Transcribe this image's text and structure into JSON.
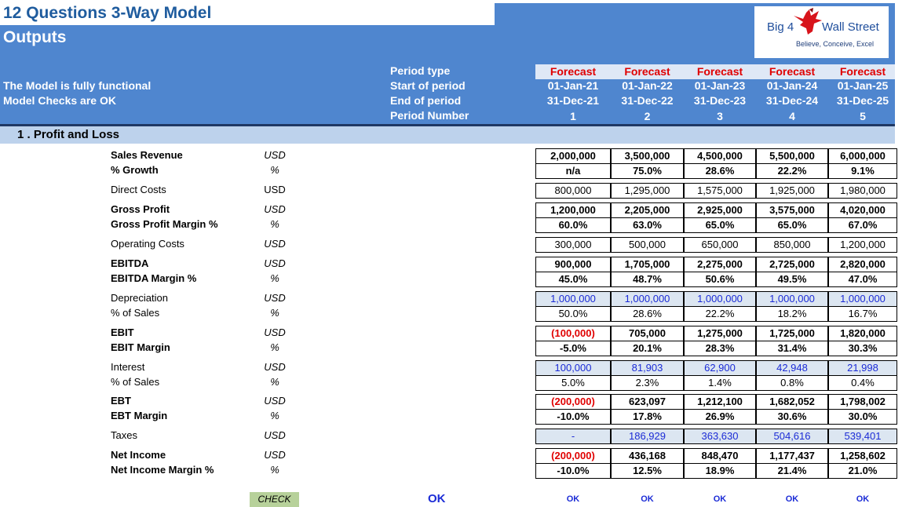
{
  "sheet": {
    "title": "12 Questions 3-Way Model",
    "subtitle": "Outputs",
    "status_functional": "The Model is fully functional",
    "status_checks": "Model Checks are OK"
  },
  "logo": {
    "text_left": "Big 4",
    "text_right": "Wall Street",
    "tagline": "Believe, Conceive, Excel",
    "icon": "eagle-logo-icon"
  },
  "periods": {
    "labels": {
      "type": "Period type",
      "start": "Start of period",
      "end": "End of period",
      "number": "Period Number"
    },
    "columns": [
      {
        "type": "Forecast",
        "start": "01-Jan-21",
        "end": "31-Dec-21",
        "number": "1"
      },
      {
        "type": "Forecast",
        "start": "01-Jan-22",
        "end": "31-Dec-22",
        "number": "2"
      },
      {
        "type": "Forecast",
        "start": "01-Jan-23",
        "end": "31-Dec-23",
        "number": "3"
      },
      {
        "type": "Forecast",
        "start": "01-Jan-24",
        "end": "31-Dec-24",
        "number": "4"
      },
      {
        "type": "Forecast",
        "start": "01-Jan-25",
        "end": "31-Dec-25",
        "number": "5"
      }
    ]
  },
  "section": {
    "title": "1 . Profit and Loss"
  },
  "rows": [
    {
      "label": "Sales Revenue",
      "unit": "USD",
      "values": [
        "2,000,000",
        "3,500,000",
        "4,500,000",
        "5,500,000",
        "6,000,000"
      ]
    },
    {
      "label": "% Growth",
      "unit": "%",
      "values": [
        "n/a",
        "75.0%",
        "28.6%",
        "22.2%",
        "9.1%"
      ]
    },
    {
      "label": "Direct Costs",
      "unit": "USD",
      "values": [
        "800,000",
        "1,295,000",
        "1,575,000",
        "1,925,000",
        "1,980,000"
      ]
    },
    {
      "label": "Gross Profit",
      "unit": "USD",
      "values": [
        "1,200,000",
        "2,205,000",
        "2,925,000",
        "3,575,000",
        "4,020,000"
      ]
    },
    {
      "label": "Gross Profit Margin %",
      "unit": "%",
      "values": [
        "60.0%",
        "63.0%",
        "65.0%",
        "65.0%",
        "67.0%"
      ]
    },
    {
      "label": "Operating Costs",
      "unit": "USD",
      "values": [
        "300,000",
        "500,000",
        "650,000",
        "850,000",
        "1,200,000"
      ]
    },
    {
      "label": "EBITDA",
      "unit": "USD",
      "values": [
        "900,000",
        "1,705,000",
        "2,275,000",
        "2,725,000",
        "2,820,000"
      ]
    },
    {
      "label": "EBITDA Margin %",
      "unit": "%",
      "values": [
        "45.0%",
        "48.7%",
        "50.6%",
        "49.5%",
        "47.0%"
      ]
    },
    {
      "label": "Depreciation",
      "unit": "USD",
      "values": [
        "1,000,000",
        "1,000,000",
        "1,000,000",
        "1,000,000",
        "1,000,000"
      ]
    },
    {
      "label": "% of Sales",
      "unit": "%",
      "values": [
        "50.0%",
        "28.6%",
        "22.2%",
        "18.2%",
        "16.7%"
      ]
    },
    {
      "label": "EBIT",
      "unit": "USD",
      "values": [
        "(100,000)",
        "705,000",
        "1,275,000",
        "1,725,000",
        "1,820,000"
      ]
    },
    {
      "label": "EBIT Margin",
      "unit": "%",
      "values": [
        "-5.0%",
        "20.1%",
        "28.3%",
        "31.4%",
        "30.3%"
      ]
    },
    {
      "label": "Interest",
      "unit": "USD",
      "values": [
        "100,000",
        "81,903",
        "62,900",
        "42,948",
        "21,998"
      ]
    },
    {
      "label": "% of Sales",
      "unit": "%",
      "values": [
        "5.0%",
        "2.3%",
        "1.4%",
        "0.8%",
        "0.4%"
      ]
    },
    {
      "label": "EBT",
      "unit": "USD",
      "values": [
        "(200,000)",
        "623,097",
        "1,212,100",
        "1,682,052",
        "1,798,002"
      ]
    },
    {
      "label": "EBT Margin",
      "unit": "%",
      "values": [
        "-10.0%",
        "17.8%",
        "26.9%",
        "30.6%",
        "30.0%"
      ]
    },
    {
      "label": "Taxes",
      "unit": "USD",
      "values": [
        "-",
        "186,929",
        "363,630",
        "504,616",
        "539,401"
      ]
    },
    {
      "label": "Net Income",
      "unit": "USD",
      "values": [
        "(200,000)",
        "436,168",
        "848,470",
        "1,177,437",
        "1,258,602"
      ]
    },
    {
      "label": "Net Income Margin %",
      "unit": "%",
      "values": [
        "-10.0%",
        "12.5%",
        "18.9%",
        "21.4%",
        "21.0%"
      ]
    }
  ],
  "checks": {
    "button_label": "CHECK",
    "overall": "OK",
    "per_period": [
      "OK",
      "OK",
      "OK",
      "OK",
      "OK"
    ]
  },
  "colors": {
    "header_band": "#4f86cf",
    "title_text": "#1f5c9e",
    "forecast_text": "#e00000",
    "section_band": "#bdd2ec",
    "input_cell_bg": "#dce6f1",
    "input_cell_text": "#1b2bd6",
    "negative_text": "#e00000",
    "check_button_bg": "#b7d19a"
  }
}
